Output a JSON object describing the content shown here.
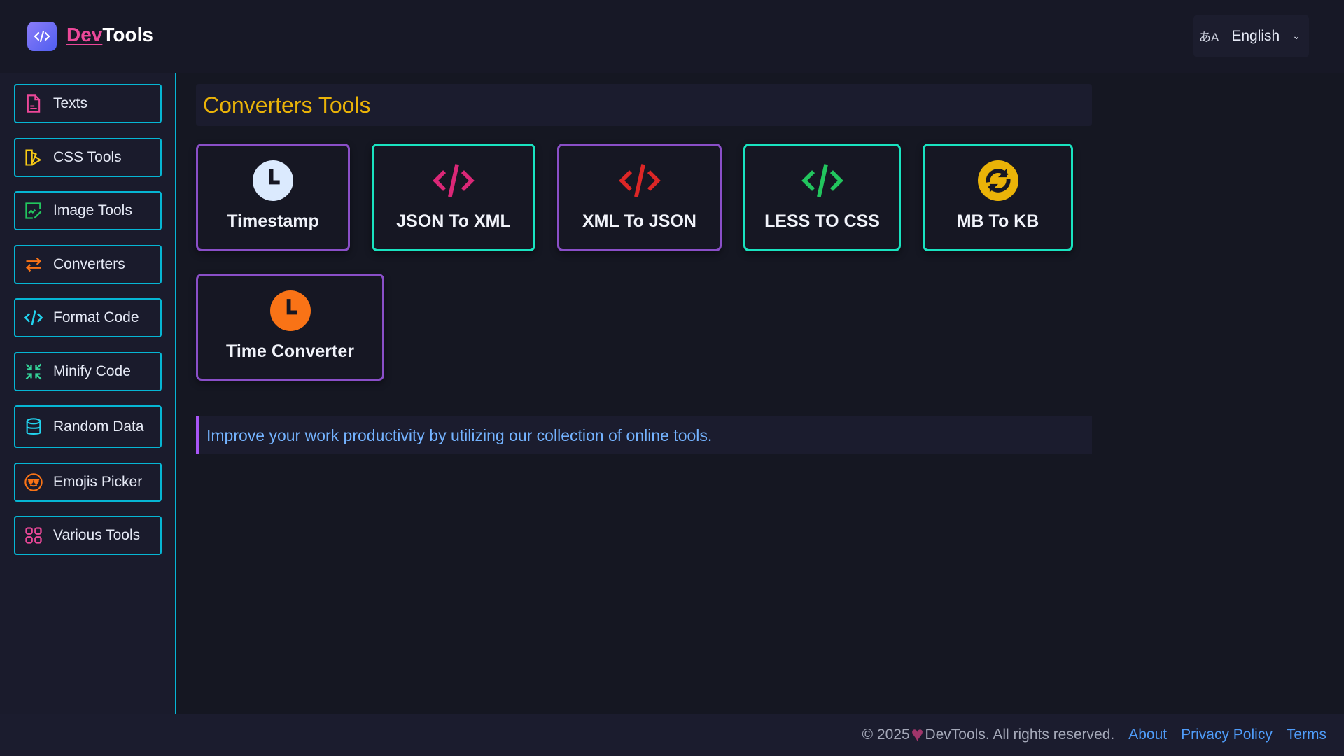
{
  "header": {
    "brand_dev": "Dev",
    "brand_tools": "Tools",
    "language": "English"
  },
  "sidebar": {
    "items": [
      {
        "label": "Texts",
        "icon": "file-text-icon",
        "color": "#ec4899"
      },
      {
        "label": "CSS Tools",
        "icon": "palette-icon",
        "color": "#facc15"
      },
      {
        "label": "Image Tools",
        "icon": "image-edit-icon",
        "color": "#22c55e"
      },
      {
        "label": "Converters",
        "icon": "swap-arrows-icon",
        "color": "#f97316"
      },
      {
        "label": "Format Code",
        "icon": "code-icon",
        "color": "#22d3ee"
      },
      {
        "label": "Minify Code",
        "icon": "minimize-arrows-icon",
        "color": "#34d399"
      },
      {
        "label": "Random Data",
        "icon": "database-icon",
        "color": "#22d3ee"
      },
      {
        "label": "Emojis Picker",
        "icon": "sunglasses-emoji-icon",
        "color": "#f97316"
      },
      {
        "label": "Various Tools",
        "icon": "grid-icon",
        "color": "#ec4899"
      }
    ]
  },
  "main": {
    "title": "Converters Tools",
    "tools": [
      {
        "label": "Timestamp",
        "icon": "clock-icon",
        "color": "#dbeafe"
      },
      {
        "label": "JSON To XML",
        "icon": "code-icon",
        "color": "#db2777"
      },
      {
        "label": "XML To JSON",
        "icon": "code-icon",
        "color": "#dc2626"
      },
      {
        "label": "LESS TO CSS",
        "icon": "code-icon",
        "color": "#22c55e"
      },
      {
        "label": "MB To KB",
        "icon": "refresh-icon",
        "color": "#eab308"
      },
      {
        "label": "Time Converter",
        "icon": "clock-icon",
        "color": "#f97316"
      }
    ],
    "info": "Improve your work productivity by utilizing our collection of online tools."
  },
  "footer": {
    "copyright": "© 2025",
    "rights": "DevTools. All rights reserved.",
    "links": [
      "About",
      "Privacy Policy",
      "Terms"
    ]
  }
}
